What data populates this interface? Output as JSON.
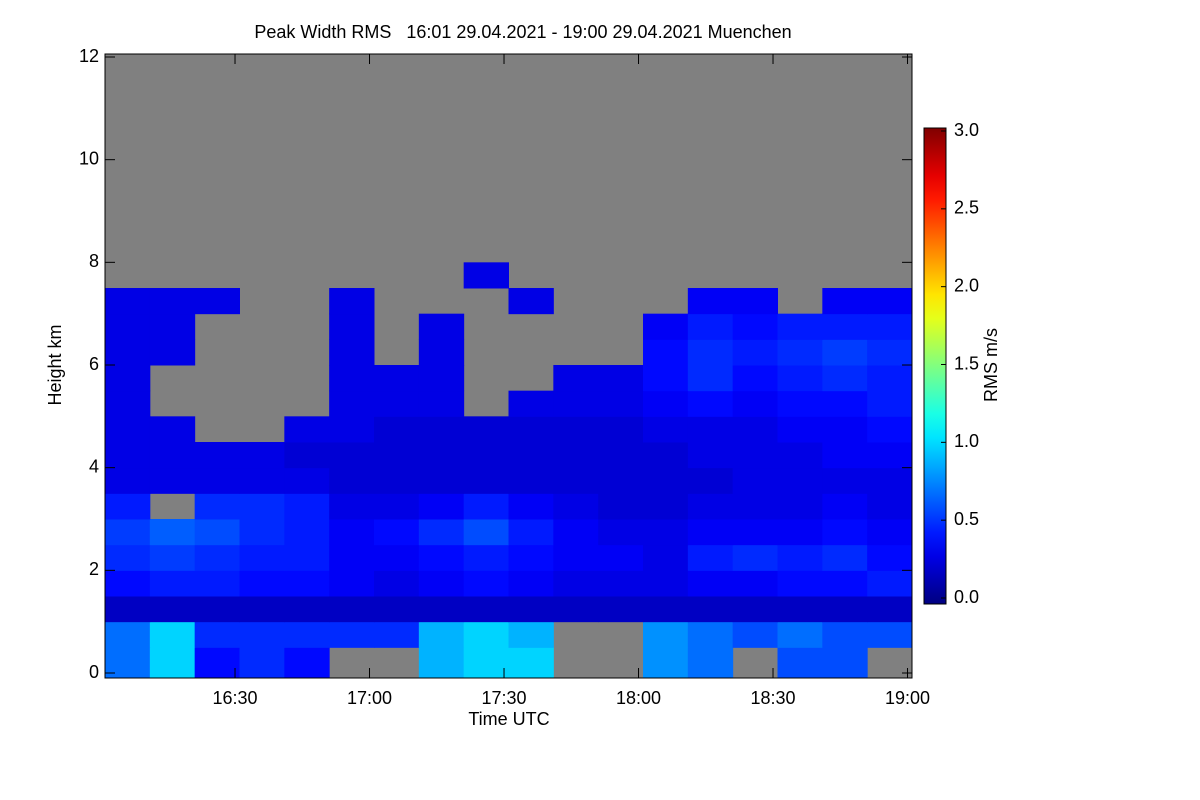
{
  "chart_data": {
    "type": "heatmap",
    "title": "Peak Width RMS   16:01 29.04.2021 - 19:00 29.04.2021 Muenchen",
    "x_label": "Time UTC",
    "y_label": "Height km",
    "colorbar_label": "RMS m/s",
    "colormap": "jet",
    "missing_color": "#808080",
    "xlim": [
      "16:01",
      "19:01"
    ],
    "xticks": [
      "16:30",
      "17:00",
      "17:30",
      "18:00",
      "18:30",
      "19:00"
    ],
    "ylim": [
      0,
      12
    ],
    "yticks": [
      0,
      2,
      4,
      6,
      8,
      10,
      12
    ],
    "clim": [
      0,
      3
    ],
    "cticks": [
      {
        "value": 0,
        "label": "0.0"
      },
      {
        "value": 0.5,
        "label": "0.5"
      },
      {
        "value": 1,
        "label": "1.0"
      },
      {
        "value": 1.5,
        "label": "1.5"
      },
      {
        "value": 2,
        "label": "2.0"
      },
      {
        "value": 2.5,
        "label": "2.5"
      },
      {
        "value": 3,
        "label": "3.0"
      }
    ],
    "x": [
      "16:06",
      "16:16",
      "16:26",
      "16:36",
      "16:46",
      "16:56",
      "17:06",
      "17:16",
      "17:26",
      "17:36",
      "17:46",
      "17:56",
      "18:06",
      "18:16",
      "18:26",
      "18:36",
      "18:46",
      "18:56"
    ],
    "y": [
      0.25,
      0.75,
      1.25,
      1.75,
      2.25,
      2.75,
      3.25,
      3.75,
      4.25,
      4.75,
      5.25,
      5.75,
      6.25,
      6.75,
      7.25,
      7.75,
      8.25,
      8.75,
      9.25,
      9.75,
      10.25,
      10.75,
      11.25,
      11.75
    ],
    "z": [
      [
        0.7,
        1.0,
        0.4,
        0.5,
        0.4,
        null,
        null,
        0.9,
        1.0,
        1.0,
        null,
        null,
        0.8,
        0.7,
        null,
        0.6,
        0.6,
        null
      ],
      [
        0.7,
        1.0,
        0.5,
        0.5,
        0.5,
        0.5,
        0.5,
        0.9,
        1.0,
        0.9,
        null,
        null,
        0.8,
        0.7,
        0.6,
        0.7,
        0.6,
        0.6
      ],
      [
        0.2,
        0.2,
        0.2,
        0.2,
        0.2,
        0.2,
        0.2,
        0.2,
        0.2,
        0.2,
        0.2,
        0.2,
        0.2,
        0.2,
        0.2,
        0.2,
        0.2,
        0.2
      ],
      [
        0.4,
        0.45,
        0.45,
        0.4,
        0.4,
        0.35,
        0.3,
        0.35,
        0.4,
        0.35,
        0.3,
        0.3,
        0.3,
        0.35,
        0.35,
        0.4,
        0.4,
        0.45
      ],
      [
        0.5,
        0.55,
        0.5,
        0.45,
        0.45,
        0.35,
        0.35,
        0.4,
        0.45,
        0.4,
        0.35,
        0.35,
        0.3,
        0.45,
        0.5,
        0.45,
        0.5,
        0.4
      ],
      [
        0.55,
        0.65,
        0.6,
        0.5,
        0.45,
        0.35,
        0.4,
        0.5,
        0.6,
        0.45,
        0.35,
        0.3,
        0.3,
        0.35,
        0.35,
        0.35,
        0.4,
        0.35
      ],
      [
        0.45,
        null,
        0.5,
        0.5,
        0.45,
        0.3,
        0.3,
        0.35,
        0.45,
        0.35,
        0.3,
        0.25,
        0.25,
        0.3,
        0.3,
        0.3,
        0.35,
        0.3
      ],
      [
        0.3,
        0.3,
        0.3,
        0.3,
        0.3,
        0.25,
        0.25,
        0.25,
        0.25,
        0.25,
        0.25,
        0.25,
        0.25,
        0.25,
        0.3,
        0.3,
        0.3,
        0.3
      ],
      [
        0.3,
        0.3,
        0.3,
        0.3,
        0.25,
        0.25,
        0.25,
        0.25,
        0.25,
        0.25,
        0.25,
        0.25,
        0.25,
        0.3,
        0.3,
        0.3,
        0.35,
        0.35
      ],
      [
        0.3,
        0.3,
        null,
        null,
        0.3,
        0.3,
        0.25,
        0.25,
        0.25,
        0.25,
        0.25,
        0.25,
        0.3,
        0.3,
        0.3,
        0.35,
        0.35,
        0.4
      ],
      [
        0.3,
        null,
        null,
        null,
        null,
        0.3,
        0.3,
        0.3,
        null,
        0.3,
        0.3,
        0.3,
        0.35,
        0.4,
        0.35,
        0.4,
        0.4,
        0.45
      ],
      [
        0.3,
        null,
        null,
        null,
        null,
        0.3,
        0.3,
        0.3,
        null,
        null,
        0.3,
        0.3,
        0.4,
        0.5,
        0.4,
        0.45,
        0.5,
        0.45
      ],
      [
        0.3,
        0.3,
        null,
        null,
        null,
        0.3,
        null,
        0.3,
        null,
        null,
        null,
        null,
        0.4,
        0.5,
        0.45,
        0.5,
        0.55,
        0.5
      ],
      [
        0.3,
        0.3,
        null,
        null,
        null,
        0.3,
        null,
        0.3,
        null,
        null,
        null,
        null,
        0.35,
        0.45,
        0.4,
        0.45,
        0.45,
        0.45
      ],
      [
        0.3,
        0.3,
        0.3,
        null,
        null,
        0.3,
        null,
        null,
        null,
        0.3,
        null,
        null,
        null,
        0.35,
        0.35,
        null,
        0.35,
        0.35
      ],
      [
        null,
        null,
        null,
        null,
        null,
        null,
        null,
        null,
        0.3,
        null,
        null,
        null,
        null,
        null,
        null,
        null,
        null,
        null
      ],
      [
        null,
        null,
        null,
        null,
        null,
        null,
        null,
        null,
        null,
        null,
        null,
        null,
        null,
        null,
        null,
        null,
        null,
        null
      ],
      [
        null,
        null,
        null,
        null,
        null,
        null,
        null,
        null,
        null,
        null,
        null,
        null,
        null,
        null,
        null,
        null,
        null,
        null
      ],
      [
        null,
        null,
        null,
        null,
        null,
        null,
        null,
        null,
        null,
        null,
        null,
        null,
        null,
        null,
        null,
        null,
        null,
        null
      ],
      [
        null,
        null,
        null,
        null,
        null,
        null,
        null,
        null,
        null,
        null,
        null,
        null,
        null,
        null,
        null,
        null,
        null,
        null
      ],
      [
        null,
        null,
        null,
        null,
        null,
        null,
        null,
        null,
        null,
        null,
        null,
        null,
        null,
        null,
        null,
        null,
        null,
        null
      ],
      [
        null,
        null,
        null,
        null,
        null,
        null,
        null,
        null,
        null,
        null,
        null,
        null,
        null,
        null,
        null,
        null,
        null,
        null
      ],
      [
        null,
        null,
        null,
        null,
        null,
        null,
        null,
        null,
        null,
        null,
        null,
        null,
        null,
        null,
        null,
        null,
        null,
        null
      ],
      [
        null,
        null,
        null,
        null,
        null,
        null,
        null,
        null,
        null,
        null,
        null,
        null,
        null,
        null,
        null,
        null,
        null,
        null
      ]
    ]
  }
}
